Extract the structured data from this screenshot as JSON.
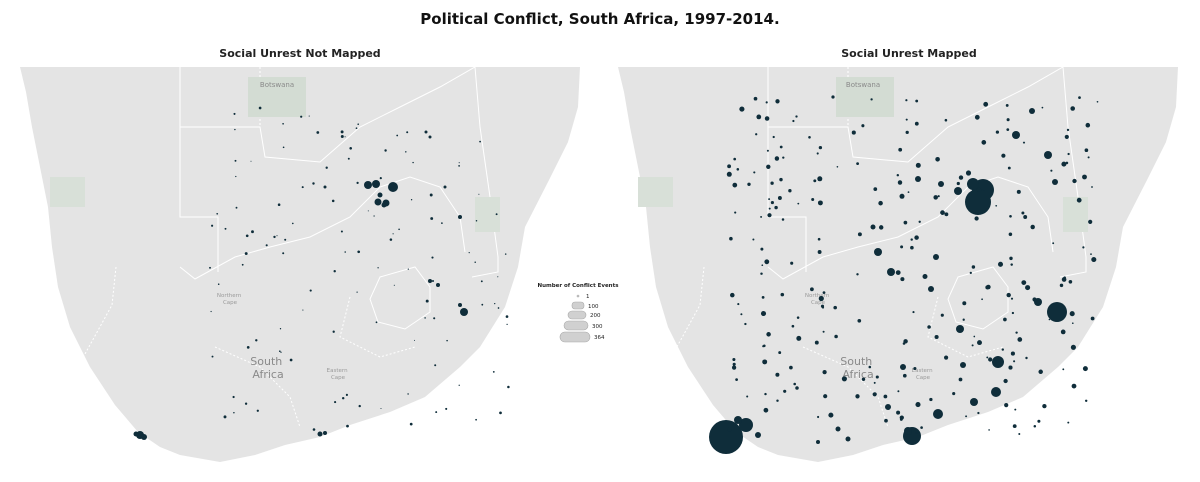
{
  "title": "Political Conflict, South Africa, 1997-2014.",
  "panels": [
    {
      "title": "Social Unrest Not Mapped"
    },
    {
      "title": "Social Unrest Mapped"
    }
  ],
  "map_labels": {
    "country_north": "Botswana",
    "country_main": "South\nAfrica",
    "province_1": "Northern\nCape",
    "province_2": "Eastern\nCape"
  },
  "legend": {
    "title": "Number of Conflict Events",
    "entries": [
      "1",
      "100",
      "200",
      "300",
      "364"
    ]
  },
  "colors": {
    "ocean": "#ffffff",
    "land": "#e4e4e4",
    "border": "#ffffff",
    "park": "#d3dcd3",
    "marker": "#0f2d3a"
  }
}
